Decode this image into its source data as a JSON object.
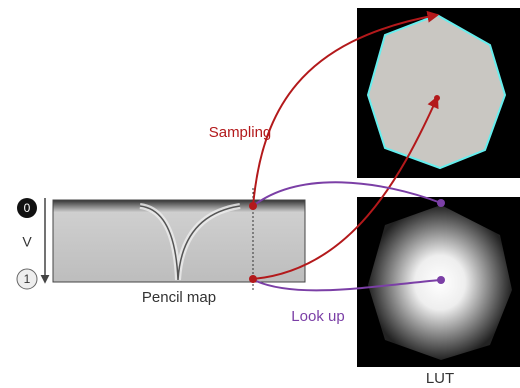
{
  "labels": {
    "sampling": "Sampling",
    "look_up": "Look up",
    "pencil_map": "Pencil map",
    "lut": "LUT",
    "v_axis": "V",
    "v_start": "0",
    "v_end": "1"
  }
}
